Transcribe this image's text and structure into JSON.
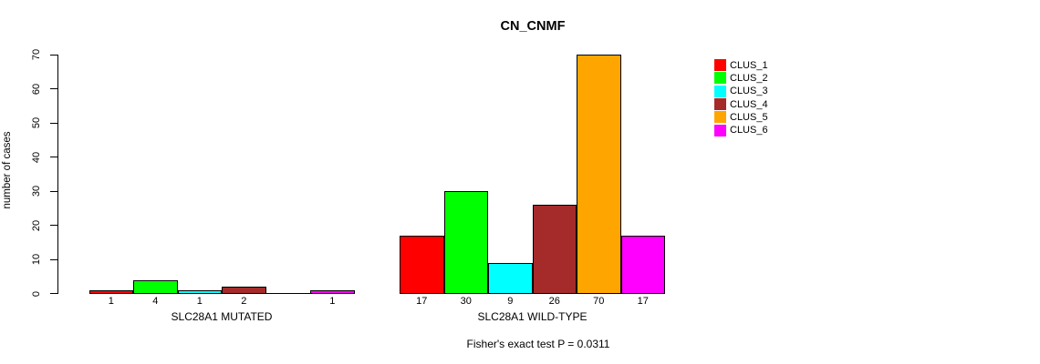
{
  "chart_data": {
    "type": "bar",
    "title": "CN_CNMF",
    "ylabel": "number of cases",
    "xlabel": "",
    "ylim": [
      0,
      70
    ],
    "yticks": [
      0,
      10,
      20,
      30,
      40,
      50,
      60,
      70
    ],
    "grid": false,
    "legend_position": "right",
    "legend": [
      {
        "label": "CLUS_1",
        "color": "#FF0000"
      },
      {
        "label": "CLUS_2",
        "color": "#00FF00"
      },
      {
        "label": "CLUS_3",
        "color": "#00FFFF"
      },
      {
        "label": "CLUS_4",
        "color": "#A52A2A"
      },
      {
        "label": "CLUS_5",
        "color": "#FFA500"
      },
      {
        "label": "CLUS_6",
        "color": "#FF00FF"
      }
    ],
    "groups": [
      {
        "label": "SLC28A1 MUTATED",
        "values": [
          1,
          4,
          1,
          2,
          0,
          1
        ],
        "bar_labels": [
          "1",
          "4",
          "1",
          "2",
          "",
          "1"
        ]
      },
      {
        "label": "SLC28A1 WILD-TYPE",
        "values": [
          17,
          30,
          9,
          26,
          70,
          17
        ],
        "bar_labels": [
          "17",
          "30",
          "9",
          "26",
          "70",
          "17"
        ]
      }
    ],
    "annotation": "Fisher's exact test P = 0.0311"
  }
}
